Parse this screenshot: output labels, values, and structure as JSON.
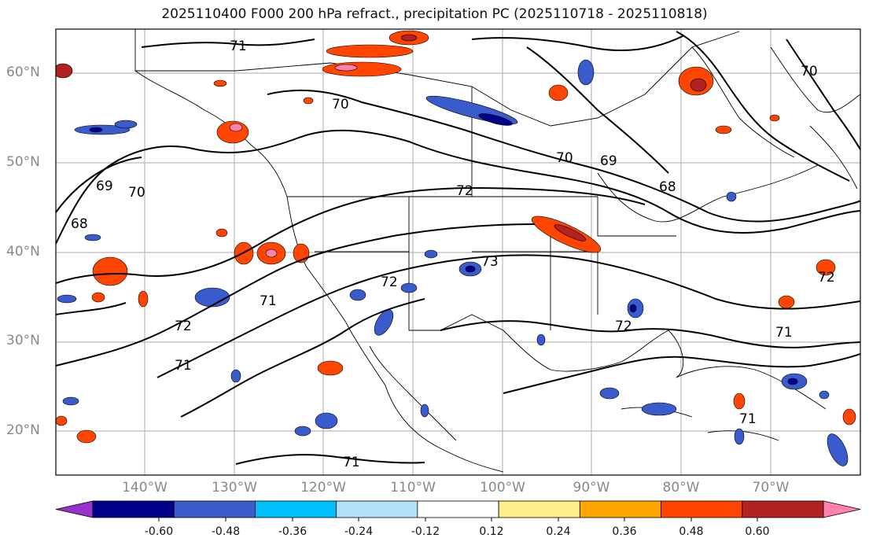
{
  "title": "2025110400 F000 200 hPa refract., precipitation PC (2025110718 - 2025110818)",
  "lat_labels": [
    "60°N",
    "50°N",
    "40°N",
    "30°N",
    "20°N"
  ],
  "lon_labels": [
    "140°W",
    "130°W",
    "120°W",
    "110°W",
    "100°W",
    "90°W",
    "80°W",
    "70°W"
  ],
  "contour_labels": [
    "71",
    "70",
    "70",
    "69",
    "72",
    "68",
    "69",
    "70",
    "68",
    "72",
    "73",
    "72",
    "71",
    "72",
    "71",
    "71",
    "72",
    "71",
    "71",
    "70"
  ],
  "colorbar": {
    "ticks": [
      "-0.60",
      "-0.48",
      "-0.36",
      "-0.24",
      "-0.12",
      "0.12",
      "0.24",
      "0.36",
      "0.48",
      "0.60"
    ],
    "colors": [
      "#9932cc",
      "#00008b",
      "#3a5bcc",
      "#00bfff",
      "#b0e0fa",
      "#ffffff",
      "#ffec8b",
      "#ffa500",
      "#ff4500",
      "#b22222",
      "#ff82ab"
    ]
  }
}
